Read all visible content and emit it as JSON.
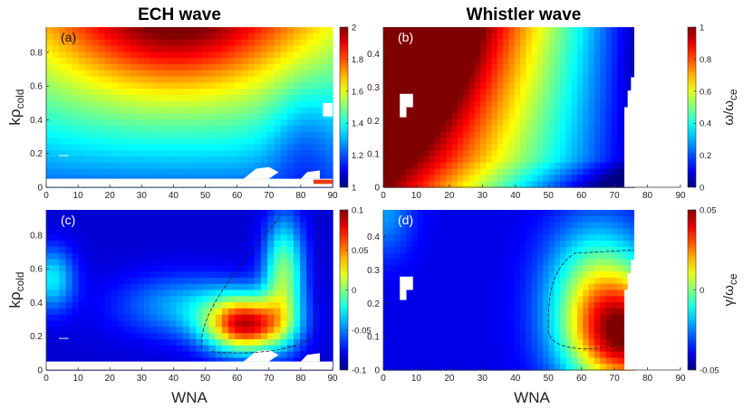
{
  "titles": {
    "left": "ECH wave",
    "right": "Whistler wave"
  },
  "chart_data": [
    {
      "id": "a",
      "panel_label": "(a)",
      "type": "heatmap",
      "title": "ECH wave",
      "xlabel": "",
      "ylabel_main": "kρ",
      "ylabel_sub": "cold",
      "xlim": [
        0,
        90
      ],
      "ylim": [
        0,
        0.95
      ],
      "xticks": [
        0,
        10,
        20,
        30,
        40,
        50,
        60,
        70,
        80,
        90
      ],
      "yticks": [
        0,
        0.2,
        0.4,
        0.6,
        0.8
      ],
      "field": "real frequency omega/omega_ce, about 1.1-1.2 at low k, rising to ~1.98 near WNA 40, k 0.8; white gaps at k<0.05 and near WNA 60-85",
      "colorbar": {
        "min": 1,
        "max": 2,
        "ticks": [
          1,
          1.2,
          1.4,
          1.6,
          1.8,
          2
        ],
        "label_main": "",
        "label_sub": ""
      }
    },
    {
      "id": "b",
      "panel_label": "(b)",
      "type": "heatmap",
      "title": "Whistler wave",
      "xlabel": "",
      "ylabel_main": "",
      "ylabel_sub": "",
      "xlim": [
        0,
        90
      ],
      "ylim": [
        0,
        0.48
      ],
      "xticks": [
        0,
        10,
        20,
        30,
        40,
        50,
        60,
        70,
        80,
        90
      ],
      "yticks": [
        0,
        0.1,
        0.2,
        0.3,
        0.4
      ],
      "data_extent_wna": [
        0,
        76
      ],
      "field": "real frequency omega/omega_ce, 1 at small WNA and high k, decreasing toward 0 near WNA 73",
      "colorbar": {
        "min": 0,
        "max": 1,
        "ticks": [
          0,
          0.2,
          0.4,
          0.6,
          0.8,
          1
        ],
        "label_main": "ω/ω",
        "label_sub": "ce"
      }
    },
    {
      "id": "c",
      "panel_label": "(c)",
      "type": "heatmap",
      "title": "",
      "xlabel": "WNA",
      "ylabel_main": "kρ",
      "ylabel_sub": "cold",
      "xlim": [
        0,
        90
      ],
      "ylim": [
        0,
        0.95
      ],
      "xticks": [
        0,
        10,
        20,
        30,
        40,
        50,
        60,
        70,
        80,
        90
      ],
      "yticks": [
        0,
        0.2,
        0.4,
        0.6,
        0.8
      ],
      "field": "growth rate gamma/omega_ce, peak ~0.06 near WNA 65, k 0.25; dashed zero contour",
      "colorbar": {
        "min": -0.1,
        "max": 0.1,
        "ticks": [
          -0.1,
          -0.05,
          0,
          0.05,
          0.1
        ],
        "tick_labels": [
          "-0.1",
          "-0.05",
          "0",
          "0.05",
          "0.1"
        ],
        "label_main": "",
        "label_sub": ""
      }
    },
    {
      "id": "d",
      "panel_label": "(d)",
      "type": "heatmap",
      "title": "",
      "xlabel": "WNA",
      "ylabel_main": "",
      "ylabel_sub": "",
      "xlim": [
        0,
        90
      ],
      "ylim": [
        0,
        0.48
      ],
      "xticks": [
        0,
        10,
        20,
        30,
        40,
        50,
        60,
        70,
        80,
        90
      ],
      "yticks": [
        0,
        0.1,
        0.2,
        0.3,
        0.4
      ],
      "data_extent_wna": [
        0,
        76
      ],
      "field": "growth rate gamma/omega_ce, peak ~0.05 near WNA 70, k 0.1; dashed zero contour",
      "colorbar": {
        "min": -0.05,
        "max": 0.05,
        "ticks": [
          -0.05,
          0,
          0.05
        ],
        "tick_labels": [
          "-0.05",
          "0",
          "0.05"
        ],
        "label_main": "γ/ω",
        "label_sub": "ce"
      }
    }
  ]
}
